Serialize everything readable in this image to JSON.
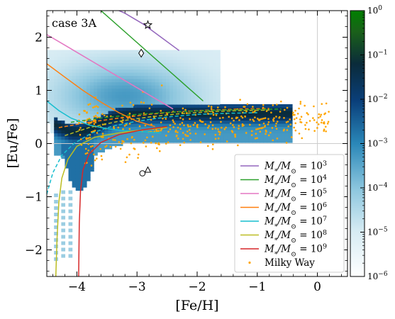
{
  "chart_data": {
    "type": "scatter",
    "annotation": "case 3A",
    "xlabel": "[Fe/H]",
    "ylabel": "[Eu/Fe]",
    "xlim": [
      -4.5,
      0.5
    ],
    "ylim": [
      -2.5,
      2.5
    ],
    "xticks": [
      -4,
      -3,
      -2,
      -1,
      0
    ],
    "xtick_labels": [
      "−4",
      "−3",
      "−2",
      "−1",
      "0"
    ],
    "yticks": [
      -2,
      -1,
      0,
      1,
      2
    ],
    "ytick_labels": [
      "−2",
      "−1",
      "0",
      "1",
      "2"
    ],
    "reference_lines": {
      "x": 0,
      "y": 0
    },
    "colorbar": {
      "scale": "log",
      "range": [
        1e-06,
        1
      ],
      "colormap": [
        "#ffffff",
        "#d9ecf4",
        "#7fc0dc",
        "#2b8cbe",
        "#08306b",
        "#0b2a3b",
        "#1e6b1e",
        "#008000"
      ],
      "tick_labels": [
        {
          "base": "10",
          "exp": "0",
          "value": 1
        },
        {
          "base": "10",
          "exp": "−1",
          "value": 0.1
        },
        {
          "base": "10",
          "exp": "−2",
          "value": 0.01
        },
        {
          "base": "10",
          "exp": "−3",
          "value": 0.001
        },
        {
          "base": "10",
          "exp": "−4",
          "value": 0.0001
        },
        {
          "base": "10",
          "exp": "−5",
          "value": 1e-05
        },
        {
          "base": "10",
          "exp": "−6",
          "value": 1e-06
        }
      ]
    },
    "series": [
      {
        "name": "M*/M⊙ = 10^3",
        "exp": "3",
        "color": "#9467bd",
        "x": [
          -3.5,
          -3.2,
          -2.9,
          -2.6,
          -2.3
        ],
        "y": [
          2.6,
          2.45,
          2.25,
          2.0,
          1.75
        ]
      },
      {
        "name": "M*/M⊙ = 10^4",
        "exp": "4",
        "color": "#2ca02c",
        "x": [
          -3.6,
          -3.3,
          -3.0,
          -2.7,
          -2.4,
          -2.1,
          -1.9
        ],
        "y": [
          2.5,
          2.2,
          1.9,
          1.6,
          1.3,
          1.0,
          0.8
        ]
      },
      {
        "name": "M*/M⊙ = 10^5",
        "exp": "5",
        "color": "#e377c2",
        "x": [
          -4.5,
          -4.2,
          -3.9,
          -3.6,
          -3.3,
          -3.0,
          -2.7,
          -2.4
        ],
        "y": [
          2.05,
          1.85,
          1.65,
          1.45,
          1.25,
          1.05,
          0.85,
          0.65
        ]
      },
      {
        "name": "M*/M⊙ = 10^6",
        "exp": "6",
        "color": "#ff7f0e",
        "x": [
          -4.5,
          -4.2,
          -3.9,
          -3.6,
          -3.3,
          -3.0,
          -2.7
        ],
        "y": [
          1.5,
          1.25,
          1.0,
          0.78,
          0.58,
          0.42,
          0.32
        ]
      },
      {
        "name": "M*/M⊙ = 10^7",
        "exp": "7",
        "color": "#17becf",
        "x": [
          -4.5,
          -4.3,
          -4.1,
          -3.8,
          -3.5,
          -3.2,
          -2.9,
          -2.6
        ],
        "y": [
          0.8,
          0.62,
          0.48,
          0.35,
          0.28,
          0.24,
          0.22,
          0.2
        ]
      },
      {
        "name": "M*/M⊙ = 10^8",
        "exp": "8",
        "color": "#bcbd22",
        "x": [
          -4.35,
          -4.33,
          -4.3,
          -4.25,
          -4.15,
          -4.0,
          -3.7,
          -3.3,
          -2.9,
          -2.5
        ],
        "y": [
          -2.5,
          -1.8,
          -1.1,
          -0.65,
          -0.3,
          -0.05,
          0.12,
          0.2,
          0.26,
          0.3
        ]
      },
      {
        "name": "M*/M⊙ = 10^9",
        "exp": "9",
        "color": "#d62728",
        "x": [
          -3.97,
          -3.96,
          -3.94,
          -3.9,
          -3.8,
          -3.6,
          -3.3,
          -2.9,
          -2.5
        ],
        "y": [
          -2.5,
          -1.5,
          -0.9,
          -0.5,
          -0.2,
          0.02,
          0.17,
          0.26,
          0.32
        ]
      }
    ],
    "dashed_series": [
      {
        "color": "#17becf",
        "x": [
          -4.5,
          -4.4,
          -4.25,
          -4.05,
          -3.75,
          -3.4,
          -3.0,
          -2.5,
          -2.0,
          -1.5,
          -1.0
        ],
        "y": [
          -0.95,
          -0.55,
          -0.22,
          0.0,
          0.2,
          0.33,
          0.42,
          0.5,
          0.55,
          0.57,
          0.58
        ]
      },
      {
        "color": "#bcbd22",
        "x": [
          -4.2,
          -3.8,
          -3.3,
          -2.8,
          -2.3,
          -1.8,
          -1.3,
          -0.8
        ],
        "y": [
          0.15,
          0.3,
          0.42,
          0.5,
          0.56,
          0.6,
          0.62,
          0.63
        ]
      },
      {
        "color": "#ff7f0e",
        "x": [
          -4.3,
          -3.8,
          -3.3,
          -2.8,
          -2.3,
          -1.8,
          -1.3,
          -0.8
        ],
        "y": [
          0.3,
          0.4,
          0.48,
          0.55,
          0.6,
          0.63,
          0.65,
          0.66
        ]
      },
      {
        "color": "#2ca02c",
        "x": [
          -4.1,
          -3.6,
          -3.1,
          -2.6,
          -2.1,
          -1.6,
          -1.1,
          -0.6
        ],
        "y": [
          0.4,
          0.48,
          0.54,
          0.58,
          0.61,
          0.63,
          0.64,
          0.65
        ]
      }
    ],
    "legend": {
      "placement": "lower-right",
      "entries": [
        "M*/M⊙ = 10^3",
        "M*/M⊙ = 10^4",
        "M*/M⊙ = 10^5",
        "M*/M⊙ = 10^6",
        "M*/M⊙ = 10^7",
        "M*/M⊙ = 10^8",
        "M*/M⊙ = 10^9",
        "Milky Way"
      ],
      "milky_way_label": "Milky Way"
    },
    "milky_way": {
      "name": "Milky Way",
      "color": "#ffa500",
      "x_range": [
        -4.0,
        0.2
      ],
      "y_mean_center": 0.25,
      "approx_count": 420
    },
    "markers": [
      {
        "symbol": "star",
        "x": -2.82,
        "y": 2.23
      },
      {
        "symbol": "diamond",
        "x": -2.93,
        "y": 1.7
      },
      {
        "symbol": "circle",
        "x": -2.91,
        "y": -0.56
      },
      {
        "symbol": "triangle",
        "x": -2.82,
        "y": -0.5
      }
    ],
    "density": {
      "description": "2D histogram of model stars in [Fe/H]-[Eu/Fe] plane, log color scale",
      "x_range": [
        -4.5,
        -0.4
      ],
      "y_range": [
        -2.5,
        1.7
      ]
    }
  }
}
